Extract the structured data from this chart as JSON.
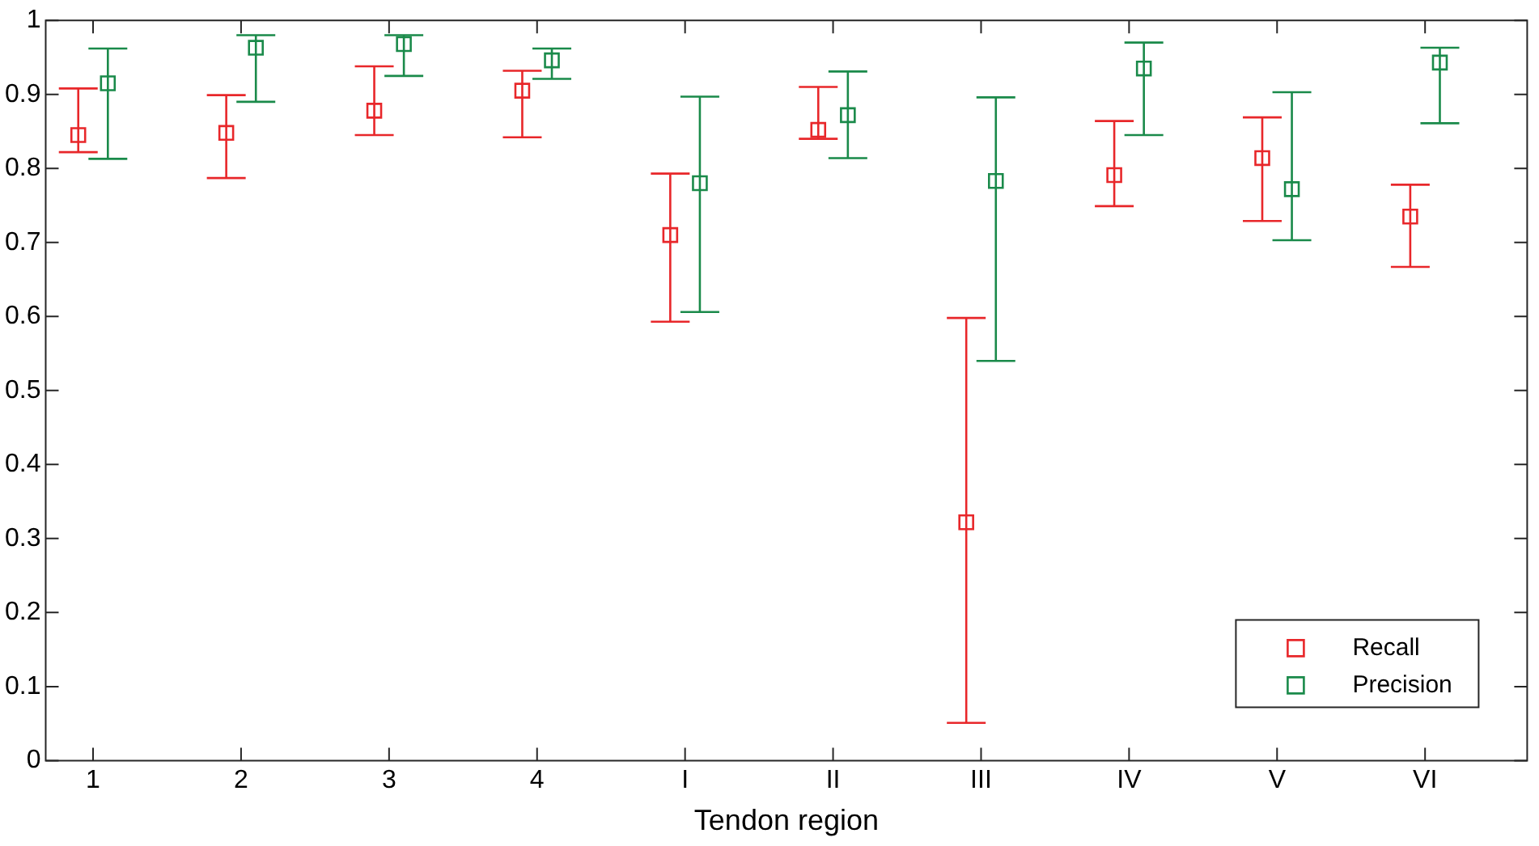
{
  "chart_data": {
    "type": "scatter",
    "xlabel": "Tendon region",
    "categories": [
      "1",
      "2",
      "3",
      "4",
      "I",
      "II",
      "III",
      "IV",
      "V",
      "VI"
    ],
    "ylim": [
      0,
      1
    ],
    "yticks": [
      0,
      0.1,
      0.2,
      0.3,
      0.4,
      0.5,
      0.6,
      0.7,
      0.8,
      0.9,
      1
    ],
    "grid": false,
    "legend": "bottom right",
    "marker": "square",
    "series": [
      {
        "name": "Recall",
        "color": "#e8272a",
        "values": [
          0.845,
          0.848,
          0.878,
          0.905,
          0.71,
          0.852,
          0.322,
          0.791,
          0.814,
          0.735
        ],
        "errors": [
          [
            0.822,
            0.908
          ],
          [
            0.787,
            0.899
          ],
          [
            0.845,
            0.938
          ],
          [
            0.842,
            0.932
          ],
          [
            0.593,
            0.793
          ],
          [
            0.84,
            0.91
          ],
          [
            0.051,
            0.598
          ],
          [
            0.749,
            0.864
          ],
          [
            0.729,
            0.869
          ],
          [
            0.667,
            0.778
          ]
        ]
      },
      {
        "name": "Precision",
        "color": "#1a8a4a",
        "values": [
          0.915,
          0.963,
          0.968,
          0.946,
          0.78,
          0.872,
          0.783,
          0.935,
          0.772,
          0.943
        ],
        "errors": [
          [
            0.813,
            0.962
          ],
          [
            0.89,
            0.98
          ],
          [
            0.925,
            0.98
          ],
          [
            0.921,
            0.962
          ],
          [
            0.606,
            0.897
          ],
          [
            0.814,
            0.931
          ],
          [
            0.54,
            0.896
          ],
          [
            0.845,
            0.97
          ],
          [
            0.703,
            0.903
          ],
          [
            0.861,
            0.963
          ]
        ]
      }
    ]
  }
}
